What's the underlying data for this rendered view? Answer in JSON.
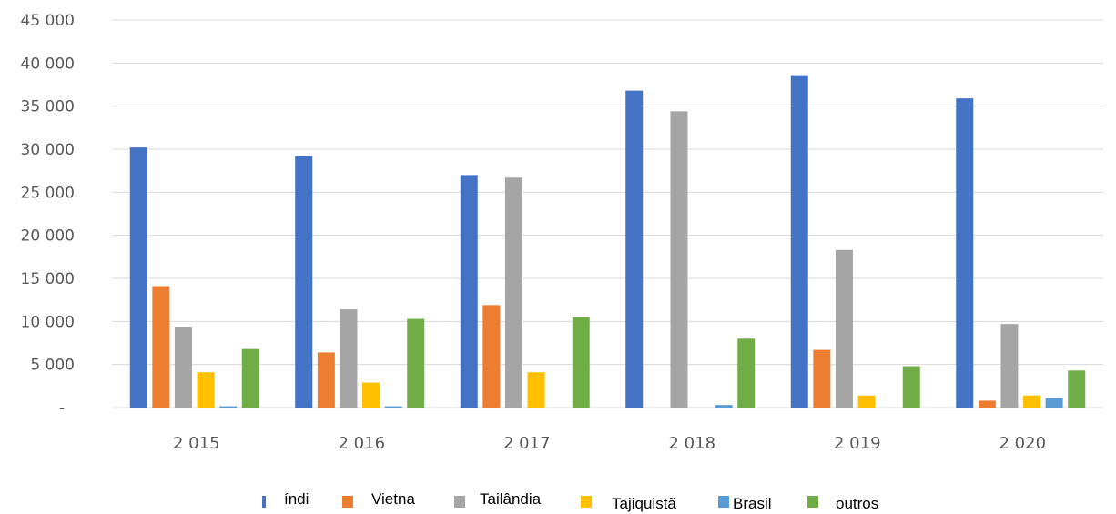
{
  "chart_data": {
    "type": "bar",
    "categories": [
      "2 015",
      "2 016",
      "2 017",
      "2 018",
      "2 019",
      "2 020"
    ],
    "series": [
      {
        "name": "índi",
        "color": "#4472C4",
        "values": [
          30200,
          29200,
          27000,
          36800,
          38600,
          35900
        ]
      },
      {
        "name": "Vietna",
        "color": "#ED7D31",
        "values": [
          14100,
          6400,
          11900,
          0,
          6700,
          800
        ]
      },
      {
        "name": "Tailândia",
        "color": "#A5A5A5",
        "values": [
          9400,
          11400,
          26700,
          34400,
          18300,
          9700
        ]
      },
      {
        "name": "Tajiquistã",
        "color": "#FFC000",
        "values": [
          4100,
          2900,
          4100,
          0,
          1400,
          1400
        ]
      },
      {
        "name": "Brasil",
        "color": "#5B9BD5",
        "values": [
          150,
          150,
          0,
          300,
          0,
          1100
        ]
      },
      {
        "name": "outros",
        "color": "#70AD47",
        "values": [
          6800,
          10300,
          10500,
          8000,
          4800,
          4300
        ]
      }
    ],
    "yticks": [
      "-",
      "5 000",
      "10 000",
      "15 000",
      "20 000",
      "25 000",
      "30 000",
      "35 000",
      "40 000",
      "45 000"
    ],
    "ylim": [
      0,
      45000
    ],
    "grid": true,
    "legend_position": "bottom"
  }
}
